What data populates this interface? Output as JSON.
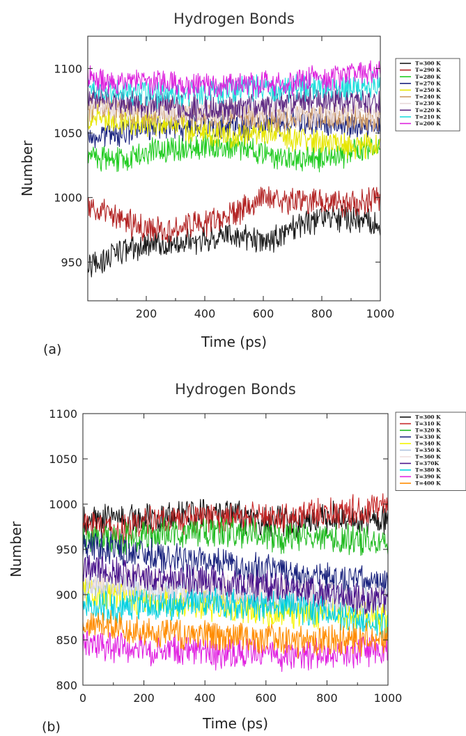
{
  "chart_data": [
    {
      "type": "line",
      "panel_label": "(a)",
      "title": "Hydrogen Bonds",
      "xlabel": "Time (ps)",
      "ylabel": "Number",
      "xlim": [
        0,
        1000
      ],
      "ylim": [
        920,
        1125
      ],
      "xticks": [
        200,
        400,
        600,
        800,
        1000
      ],
      "yticks": [
        950,
        1000,
        1050,
        1100
      ],
      "legend_position": "right-outside-top",
      "grid": false,
      "series": [
        {
          "name": "T=300 K",
          "color": "#1a1a1a",
          "x": [
            0,
            100,
            200,
            300,
            400,
            500,
            600,
            700,
            800,
            900,
            1000
          ],
          "values": [
            945,
            958,
            962,
            965,
            968,
            972,
            965,
            975,
            985,
            983,
            980
          ]
        },
        {
          "name": "T=290 K",
          "color": "#b22222",
          "x": [
            0,
            100,
            200,
            300,
            400,
            500,
            600,
            700,
            800,
            900,
            1000
          ],
          "values": [
            992,
            984,
            975,
            976,
            980,
            988,
            1000,
            998,
            996,
            995,
            1000
          ]
        },
        {
          "name": "T=280 K",
          "color": "#22cc22",
          "x": [
            0,
            100,
            200,
            300,
            400,
            500,
            600,
            700,
            800,
            900,
            1000
          ],
          "values": [
            1032,
            1030,
            1034,
            1038,
            1040,
            1040,
            1035,
            1028,
            1030,
            1035,
            1038
          ]
        },
        {
          "name": "T=270 K",
          "color": "#1a237e",
          "x": [
            0,
            100,
            200,
            300,
            400,
            500,
            600,
            700,
            800,
            900,
            1000
          ],
          "values": [
            1045,
            1050,
            1053,
            1055,
            1055,
            1054,
            1056,
            1060,
            1058,
            1057,
            1055
          ]
        },
        {
          "name": "T=250 K",
          "color": "#e6e600",
          "x": [
            0,
            100,
            200,
            300,
            400,
            500,
            600,
            700,
            800,
            900,
            1000
          ],
          "values": [
            1062,
            1060,
            1058,
            1055,
            1050,
            1048,
            1052,
            1045,
            1042,
            1040,
            1040
          ]
        },
        {
          "name": "T=240 K",
          "color": "#cc9966",
          "x": [
            0,
            100,
            200,
            300,
            400,
            500,
            600,
            700,
            800,
            900,
            1000
          ],
          "values": [
            1070,
            1068,
            1066,
            1065,
            1062,
            1064,
            1062,
            1060,
            1063,
            1062,
            1060
          ]
        },
        {
          "name": "T=230 K",
          "color": "#e8d8d8",
          "x": [
            0,
            100,
            200,
            300,
            400,
            500,
            600,
            700,
            800,
            900,
            1000
          ],
          "values": [
            1072,
            1070,
            1068,
            1066,
            1065,
            1068,
            1068,
            1066,
            1065,
            1067,
            1065
          ]
        },
        {
          "name": "T=220 K",
          "color": "#5e2a84",
          "x": [
            0,
            100,
            200,
            300,
            400,
            500,
            600,
            700,
            800,
            900,
            1000
          ],
          "values": [
            1078,
            1075,
            1072,
            1070,
            1070,
            1068,
            1072,
            1074,
            1075,
            1073,
            1076
          ]
        },
        {
          "name": "T=210 K",
          "color": "#22dddd",
          "x": [
            0,
            100,
            200,
            300,
            400,
            500,
            600,
            700,
            800,
            900,
            1000
          ],
          "values": [
            1085,
            1082,
            1080,
            1080,
            1082,
            1083,
            1085,
            1084,
            1086,
            1085,
            1088
          ]
        },
        {
          "name": "T=200 K",
          "color": "#dd22dd",
          "x": [
            0,
            100,
            200,
            300,
            400,
            500,
            600,
            700,
            800,
            900,
            1000
          ],
          "values": [
            1092,
            1090,
            1090,
            1088,
            1086,
            1088,
            1088,
            1090,
            1092,
            1095,
            1098
          ]
        }
      ]
    },
    {
      "type": "line",
      "panel_label": "(b)",
      "title": "Hydrogen Bonds",
      "xlabel": "Time (ps)",
      "ylabel": "Number",
      "xlim": [
        0,
        1000
      ],
      "ylim": [
        800,
        1100
      ],
      "xticks": [
        0,
        200,
        400,
        600,
        800,
        1000
      ],
      "yticks": [
        800,
        850,
        900,
        950,
        1000,
        1050,
        1100
      ],
      "legend_position": "right-outside-top",
      "grid": false,
      "series": [
        {
          "name": "T=300 K",
          "color": "#111111",
          "x": [
            0,
            100,
            200,
            300,
            400,
            500,
            600,
            700,
            800,
            900,
            1000
          ],
          "values": [
            980,
            985,
            984,
            988,
            990,
            987,
            982,
            980,
            985,
            985,
            982
          ]
        },
        {
          "name": "T=310 K",
          "color": "#c62828",
          "x": [
            0,
            100,
            200,
            300,
            400,
            500,
            600,
            700,
            800,
            900,
            1000
          ],
          "values": [
            975,
            972,
            980,
            982,
            985,
            983,
            985,
            987,
            990,
            992,
            995
          ]
        },
        {
          "name": "T=320 K",
          "color": "#22bb22",
          "x": [
            0,
            100,
            200,
            300,
            400,
            500,
            600,
            700,
            800,
            900,
            1000
          ],
          "values": [
            960,
            962,
            965,
            968,
            970,
            968,
            965,
            962,
            962,
            960,
            958
          ]
        },
        {
          "name": "T=330 K",
          "color": "#1a237e",
          "x": [
            0,
            100,
            200,
            300,
            400,
            500,
            600,
            700,
            800,
            900,
            1000
          ],
          "values": [
            955,
            950,
            945,
            940,
            935,
            932,
            928,
            920,
            918,
            915,
            910
          ]
        },
        {
          "name": "T=340 K",
          "color": "#f5f500",
          "x": [
            0,
            100,
            200,
            300,
            400,
            500,
            600,
            700,
            800,
            900,
            1000
          ],
          "values": [
            905,
            900,
            895,
            892,
            888,
            885,
            882,
            880,
            880,
            878,
            875
          ]
        },
        {
          "name": "T=350 K",
          "color": "#b0c4de",
          "x": [
            0,
            100,
            200,
            300,
            400,
            500,
            600,
            700,
            800,
            900,
            1000
          ],
          "values": [
            912,
            910,
            908,
            905,
            902,
            900,
            898,
            896,
            895,
            893,
            890
          ]
        },
        {
          "name": "T=360 K",
          "color": "#eedddd",
          "x": [
            0,
            100,
            200,
            300,
            400,
            500,
            600,
            700,
            800,
            900,
            1000
          ],
          "values": [
            920,
            918,
            915,
            912,
            910,
            908,
            905,
            902,
            900,
            898,
            895
          ]
        },
        {
          "name": "T=370K",
          "color": "#4a148c",
          "x": [
            0,
            100,
            200,
            300,
            400,
            500,
            600,
            700,
            800,
            900,
            1000
          ],
          "values": [
            930,
            925,
            920,
            918,
            915,
            912,
            910,
            905,
            900,
            895,
            890
          ]
        },
        {
          "name": "T=380 K",
          "color": "#00d0e0",
          "x": [
            0,
            100,
            200,
            300,
            400,
            500,
            600,
            700,
            800,
            900,
            1000
          ],
          "values": [
            890,
            885,
            888,
            890,
            892,
            890,
            888,
            884,
            880,
            872,
            865
          ]
        },
        {
          "name": "T=390 K",
          "color": "#e020e0",
          "x": [
            0,
            100,
            200,
            300,
            400,
            500,
            600,
            700,
            800,
            900,
            1000
          ],
          "values": [
            845,
            842,
            840,
            838,
            835,
            836,
            835,
            832,
            835,
            838,
            840
          ]
        },
        {
          "name": "T=400 K",
          "color": "#ff8c00",
          "x": [
            0,
            100,
            200,
            300,
            400,
            500,
            600,
            700,
            800,
            900,
            1000
          ],
          "values": [
            870,
            865,
            860,
            858,
            855,
            852,
            850,
            848,
            850,
            850,
            852
          ]
        }
      ]
    }
  ]
}
